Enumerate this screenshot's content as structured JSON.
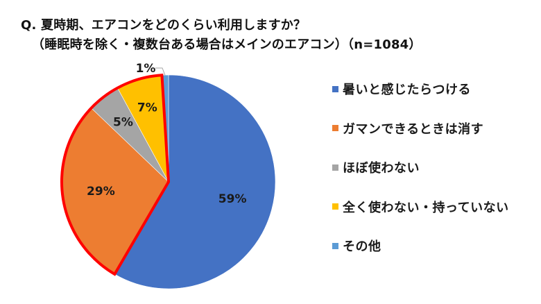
{
  "title": {
    "line1": "Q. 夏時期、エアコンをどのくらい利用しますか？",
    "line2": "（睡眠時を除く・複数台ある場合はメインのエアコン）（n=1084）"
  },
  "chart_data": {
    "type": "pie",
    "title": "Q. 夏時期、エアコンをどのくらい利用しますか？（睡眠時を除く・複数台ある場合はメインのエアコン）（n=1084）",
    "sample_size": "n=1084",
    "categories": [
      "暑いと感じたらつける",
      "ガマンできるときは消す",
      "ほぼ使わない",
      "全く使わない・持っていない",
      "その他"
    ],
    "values": [
      59,
      29,
      5,
      7,
      1
    ],
    "unit": "%",
    "labels": [
      "59%",
      "29%",
      "5%",
      "7%",
      "1%"
    ],
    "colors": [
      "#4472C4",
      "#ED7D31",
      "#A5A5A5",
      "#FFC000",
      "#5B9BD5"
    ],
    "start_angle_deg": 0,
    "direction": "clockwise",
    "highlight": {
      "description": "red outline around combined slices",
      "categories": [
        "ガマンできるときは消す",
        "ほぼ使わない",
        "全く使わない・持っていない"
      ],
      "color": "#FF0000"
    },
    "legend_position": "right"
  },
  "legend": {
    "items": [
      {
        "label": "暑いと感じたらつける",
        "color": "#4472C4"
      },
      {
        "label": "ガマンできるときは消す",
        "color": "#ED7D31"
      },
      {
        "label": "ほぼ使わない",
        "color": "#A5A5A5"
      },
      {
        "label": "全く使わない・持っていない",
        "color": "#FFC000"
      },
      {
        "label": "その他",
        "color": "#5B9BD5"
      }
    ]
  }
}
